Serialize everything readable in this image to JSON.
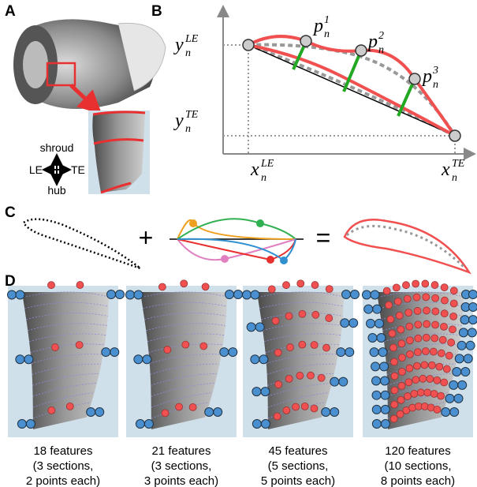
{
  "panels": {
    "a": "A",
    "b": "B",
    "c": "C",
    "d": "D"
  },
  "compass": {
    "up": "shroud",
    "down": "hub",
    "left": "LE",
    "right": "TE"
  },
  "axis_labels": [
    {
      "base": "y",
      "sub": "n",
      "sup": "LE"
    },
    {
      "base": "y",
      "sub": "n",
      "sup": "TE"
    },
    {
      "base": "x",
      "sub": "n",
      "sup": "LE"
    },
    {
      "base": "x",
      "sub": "n",
      "sup": "TE"
    }
  ],
  "points": [
    {
      "base": "p",
      "sub": "n",
      "sup": "1"
    },
    {
      "base": "p",
      "sub": "n",
      "sup": "2"
    },
    {
      "base": "p",
      "sub": "n",
      "sup": "3"
    }
  ],
  "operators": {
    "plus": "+",
    "equals": "="
  },
  "captions": [
    [
      "18 features",
      "(3 sections,",
      "2 points each)"
    ],
    [
      "21 features",
      "(3 sections,",
      "3 points each)"
    ],
    [
      "45 features",
      "(5 sections,",
      "5 points each)"
    ],
    [
      "120 features",
      "(10 sections,",
      "8 points each)"
    ]
  ]
}
